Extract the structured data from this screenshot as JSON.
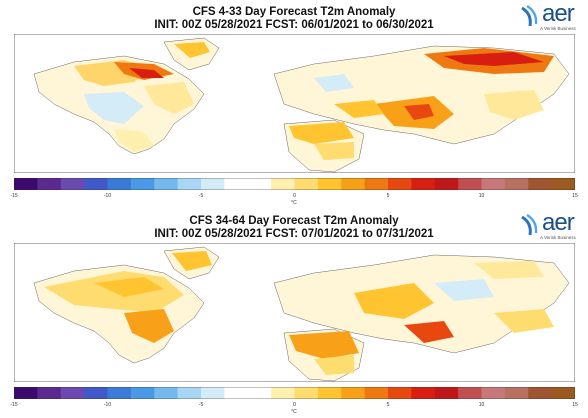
{
  "palette": [
    "#3c0a6e",
    "#5a2a8e",
    "#6a4ab0",
    "#4058c8",
    "#3a7ad8",
    "#4a98e6",
    "#74b8ee",
    "#a8d6f4",
    "#d4ecf8",
    "#ffffff",
    "#ffffff",
    "#fff0b0",
    "#ffdc70",
    "#ffc430",
    "#f8a018",
    "#f07810",
    "#e84810",
    "#d81e10",
    "#c01818",
    "#c05050",
    "#c87878",
    "#b87060",
    "#a05530",
    "#9a5a20"
  ],
  "colors": {
    "ocean": "#ffffff",
    "land_neutral": "#ffffff",
    "border": "#666666",
    "text": "#111111",
    "brand": "#1b4f8a"
  },
  "icons": {
    "logo": "aer-logo-icon"
  },
  "panels": [
    {
      "title_line1": "CFS 4-33 Day Forecast T2m Anomaly",
      "title_line2": "INIT: 00Z 05/28/2021     FCST: 06/01/2021 to 06/30/2021",
      "logo_text": "aer",
      "logo_sub": "A Verisk Business",
      "colorbar_ticks": [
        "-15",
        "-10",
        "-5",
        "0",
        "5",
        "10",
        "15"
      ],
      "unit": "°C"
    },
    {
      "title_line1": "CFS 34-64 Day Forecast T2m Anomaly",
      "title_line2": "INIT: 00Z 05/28/2021     FCST: 07/01/2021 to 07/31/2021",
      "logo_text": "aer",
      "logo_sub": "A Verisk Business",
      "colorbar_ticks": [
        "-15",
        "-10",
        "-5",
        "0",
        "5",
        "10",
        "15"
      ],
      "unit": "°C"
    }
  ]
}
